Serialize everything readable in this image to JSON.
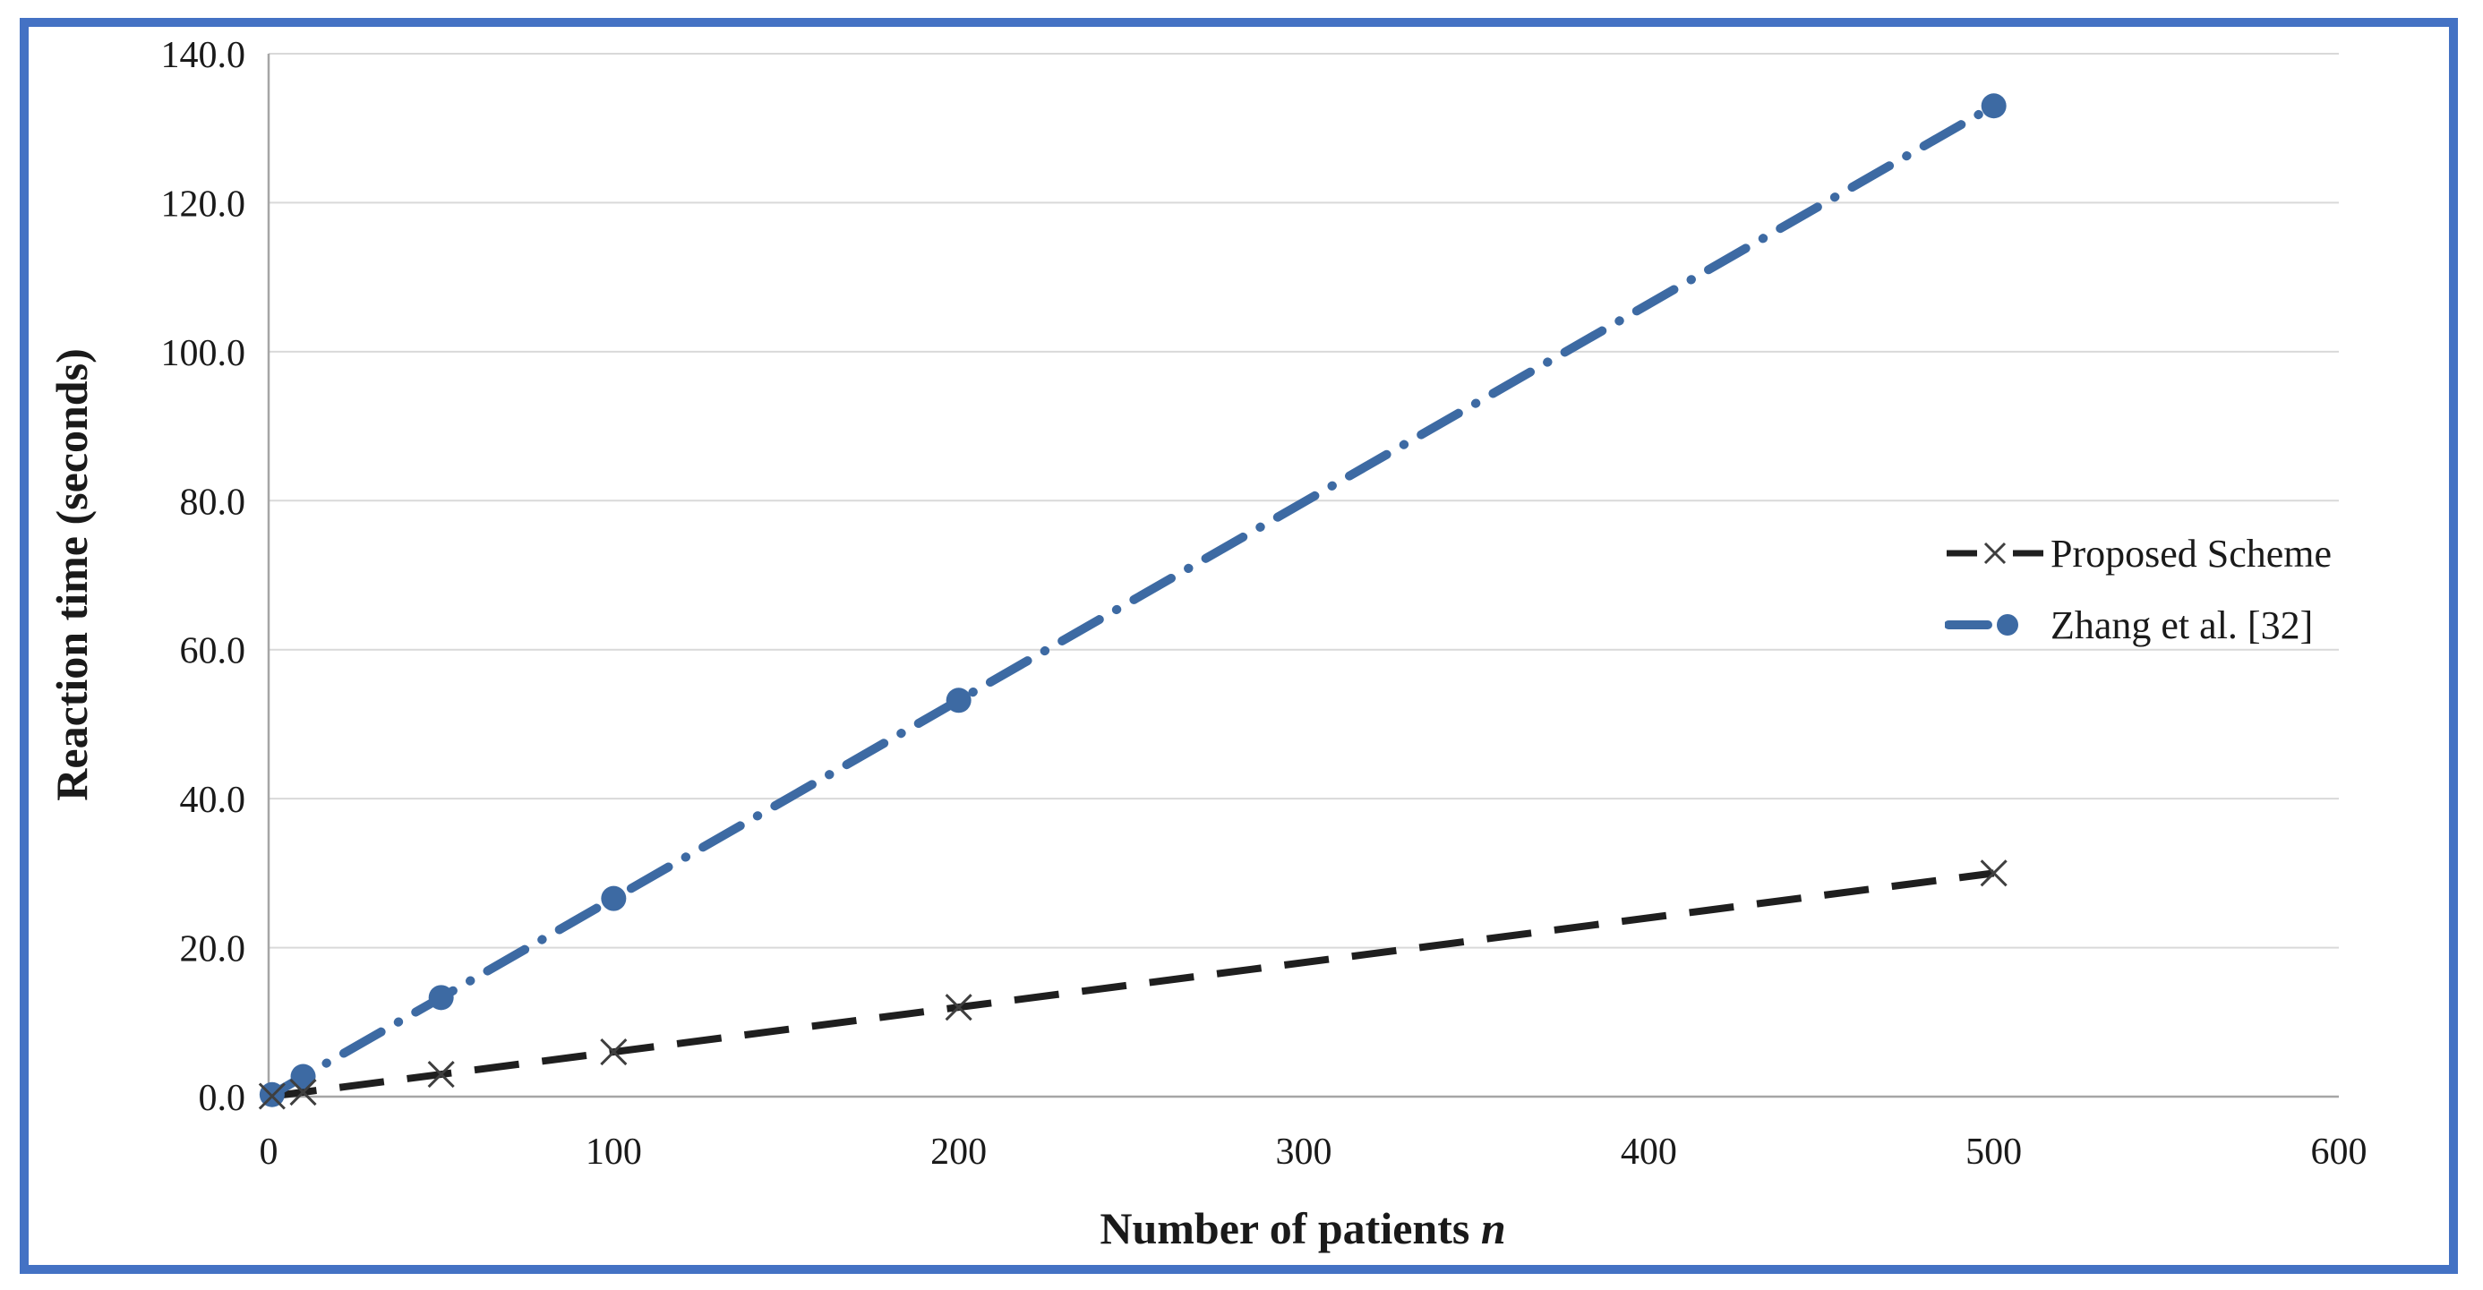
{
  "chart_data": {
    "type": "line",
    "title": "",
    "xlabel": "Number of patients n",
    "ylabel": "Reaction time (seconds)",
    "x": [
      1,
      10,
      50,
      100,
      200,
      500
    ],
    "series": [
      {
        "name": "Proposed Scheme",
        "values": [
          0.06,
          0.6,
          3.0,
          6.0,
          12.0,
          30.0
        ],
        "color": "#1f1f1f",
        "marker": "x",
        "marker_color": "#3f3f3f",
        "line_style": "dashed"
      },
      {
        "name": "Zhang et al. [32]",
        "values": [
          0.27,
          2.7,
          13.3,
          26.6,
          53.2,
          133.0
        ],
        "color": "#3d6aa3",
        "marker": "circle",
        "marker_color": "#3d6aa3",
        "line_style": "dash-dot"
      }
    ],
    "xlim": [
      0,
      600
    ],
    "ylim": [
      0,
      140
    ],
    "x_ticks": [
      "0",
      "100",
      "200",
      "300",
      "400",
      "500",
      "600"
    ],
    "y_ticks": [
      "0.0",
      "20.0",
      "40.0",
      "60.0",
      "80.0",
      "100.0",
      "120.0",
      "140.0"
    ],
    "grid": "horizontal",
    "legend_position": "middle-right",
    "legend_border": false
  },
  "labels": {
    "x_axis_main": "Number of patients ",
    "x_axis_variable": "n",
    "y_axis": "Reaction time (seconds)"
  },
  "colors": {
    "frame_border": "#4472c4",
    "background": "#ffffff",
    "gridline": "#d9d9d9",
    "axis_line": "#a6a6a6",
    "tick_text": "#1a1a1a",
    "series_proposed": "#1f1f1f",
    "series_zhang": "#3d6aa3"
  }
}
